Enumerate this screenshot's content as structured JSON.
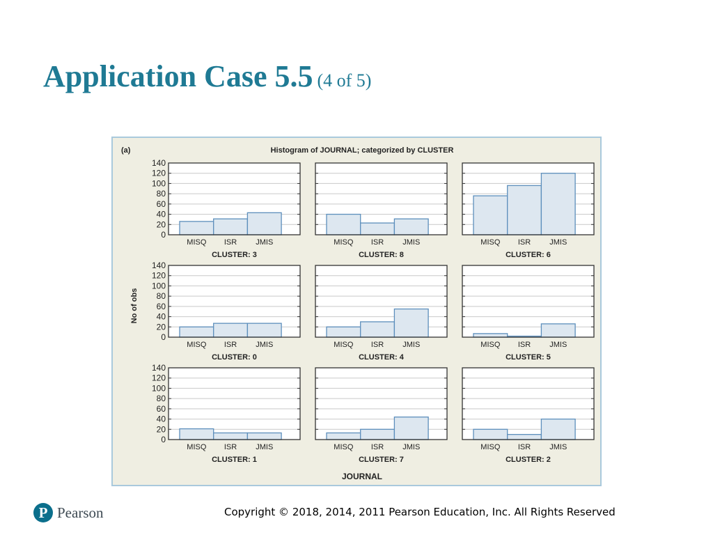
{
  "slide": {
    "title": "Application Case 5.5",
    "subtitle": "(4 of 5)",
    "copyright": "Copyright © 2018, 2014, 2011 Pearson Education, Inc. All Rights Reserved"
  },
  "logo": {
    "mark": "P",
    "text": "Pearson",
    "color": "#0b6f8c"
  },
  "colors": {
    "title": "#1f7a94",
    "bar_fill": "#dde7f0",
    "bar_stroke": "#5d8fbc",
    "figure_bg": "#efeee2"
  },
  "chart_data": {
    "type": "bar",
    "panel_label": "(a)",
    "title": "Histogram of JOURNAL; categorized by CLUSTER",
    "ylabel": "No of obs",
    "xlabel": "JOURNAL",
    "categories": [
      "MISQ",
      "ISR",
      "JMIS"
    ],
    "yticks": [
      0,
      20,
      40,
      60,
      80,
      100,
      120,
      140
    ],
    "ylim": [
      0,
      140
    ],
    "grid": true,
    "panels": [
      {
        "label": "CLUSTER: 3",
        "values": [
          26,
          31,
          43
        ]
      },
      {
        "label": "CLUSTER: 8",
        "values": [
          40,
          23,
          31
        ]
      },
      {
        "label": "CLUSTER: 6",
        "values": [
          76,
          96,
          120
        ]
      },
      {
        "label": "CLUSTER: 0",
        "values": [
          20,
          27,
          27
        ]
      },
      {
        "label": "CLUSTER: 4",
        "values": [
          20,
          30,
          55
        ]
      },
      {
        "label": "CLUSTER: 5",
        "values": [
          7,
          2,
          26
        ]
      },
      {
        "label": "CLUSTER: 1",
        "values": [
          21,
          13,
          13
        ]
      },
      {
        "label": "CLUSTER: 7",
        "values": [
          13,
          20,
          44
        ]
      },
      {
        "label": "CLUSTER: 2",
        "values": [
          20,
          10,
          40
        ]
      }
    ]
  }
}
